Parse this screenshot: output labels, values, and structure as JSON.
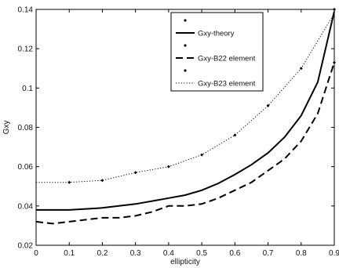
{
  "chart_data": {
    "type": "line",
    "xlabel": "ellipticity",
    "ylabel": "Gxy",
    "xlim": [
      0,
      0.9
    ],
    "ylim": [
      0.02,
      0.14
    ],
    "xticks": [
      0,
      0.1,
      0.2,
      0.3,
      0.4,
      0.5,
      0.6,
      0.7,
      0.8,
      0.9
    ],
    "xtick_labels": [
      "0",
      "0.1",
      "0.2",
      "0.3",
      "0.4",
      "0.5",
      "0.6",
      "0.7",
      "0.8",
      "0.9"
    ],
    "yticks": [
      0.02,
      0.04,
      0.06,
      0.08,
      0.1,
      0.12,
      0.14
    ],
    "ytick_labels": [
      "0.02",
      "0.04",
      "0.06",
      "0.08",
      "0.1",
      "0.12",
      "0.14"
    ],
    "grid": false,
    "legend_position": "top-right",
    "series": [
      {
        "name": "Gxy-theory",
        "style": "solid",
        "color": "#000000",
        "x": [
          0,
          0.05,
          0.1,
          0.15,
          0.2,
          0.25,
          0.3,
          0.35,
          0.4,
          0.45,
          0.5,
          0.55,
          0.6,
          0.65,
          0.7,
          0.75,
          0.8,
          0.85,
          0.9
        ],
        "y": [
          0.038,
          0.038,
          0.038,
          0.0385,
          0.039,
          0.04,
          0.041,
          0.0425,
          0.044,
          0.0455,
          0.048,
          0.0515,
          0.056,
          0.061,
          0.067,
          0.075,
          0.086,
          0.103,
          0.139
        ]
      },
      {
        "name": "Gxy-B22 element",
        "style": "dashed",
        "color": "#000000",
        "x": [
          0,
          0.05,
          0.1,
          0.15,
          0.2,
          0.25,
          0.3,
          0.35,
          0.4,
          0.45,
          0.5,
          0.55,
          0.6,
          0.65,
          0.7,
          0.75,
          0.8,
          0.85,
          0.9
        ],
        "y": [
          0.032,
          0.031,
          0.032,
          0.033,
          0.034,
          0.034,
          0.035,
          0.037,
          0.04,
          0.04,
          0.041,
          0.044,
          0.048,
          0.052,
          0.058,
          0.064,
          0.073,
          0.087,
          0.113
        ]
      },
      {
        "name": "Gxy-B23 element",
        "style": "dotted",
        "color": "#000000",
        "x": [
          0,
          0.1,
          0.2,
          0.3,
          0.4,
          0.5,
          0.6,
          0.7,
          0.8,
          0.9
        ],
        "y": [
          0.052,
          0.052,
          0.053,
          0.057,
          0.06,
          0.066,
          0.076,
          0.091,
          0.11,
          0.138
        ]
      }
    ],
    "marker_points": [
      {
        "x": 0.1,
        "y": 0.052
      },
      {
        "x": 0.2,
        "y": 0.053
      },
      {
        "x": 0.3,
        "y": 0.057
      },
      {
        "x": 0.4,
        "y": 0.06
      },
      {
        "x": 0.5,
        "y": 0.066
      },
      {
        "x": 0.6,
        "y": 0.076
      },
      {
        "x": 0.7,
        "y": 0.091
      },
      {
        "x": 0.8,
        "y": 0.11
      },
      {
        "x": 0.9,
        "y": 0.14
      },
      {
        "x": 0.9,
        "y": 0.113
      }
    ]
  }
}
